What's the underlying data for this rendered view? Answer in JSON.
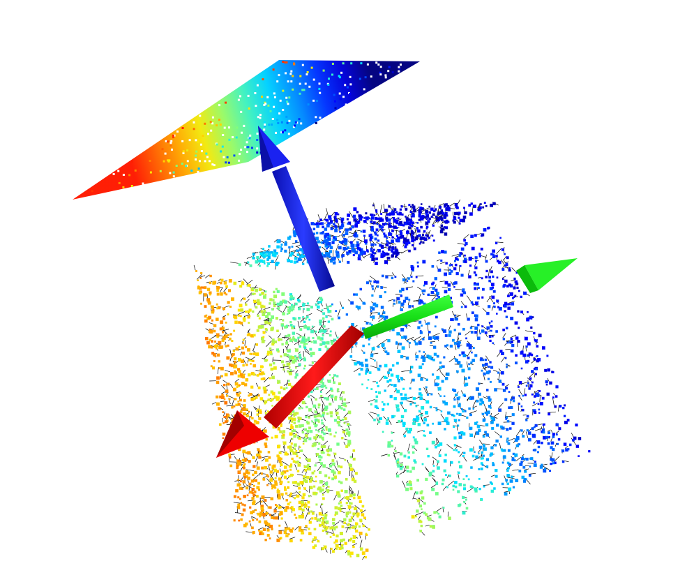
{
  "viewport": {
    "background": "#ffffff",
    "colormap": [
      "#00007f",
      "#0000ff",
      "#0080ff",
      "#00e5ff",
      "#7fff7f",
      "#ffe600",
      "#ff8000",
      "#ff1a00"
    ]
  },
  "axes": [
    {
      "name": "x-axis",
      "color": "#ff0000"
    },
    {
      "name": "y-axis",
      "color": "#00e000"
    },
    {
      "name": "z-axis",
      "color": "#0a14e6"
    }
  ],
  "point_clouds": [
    {
      "name": "cube-point-cloud",
      "normals_shown": true,
      "normal_color": "#000000"
    },
    {
      "name": "projected-plane-point-cloud",
      "normals_shown": false
    }
  ]
}
